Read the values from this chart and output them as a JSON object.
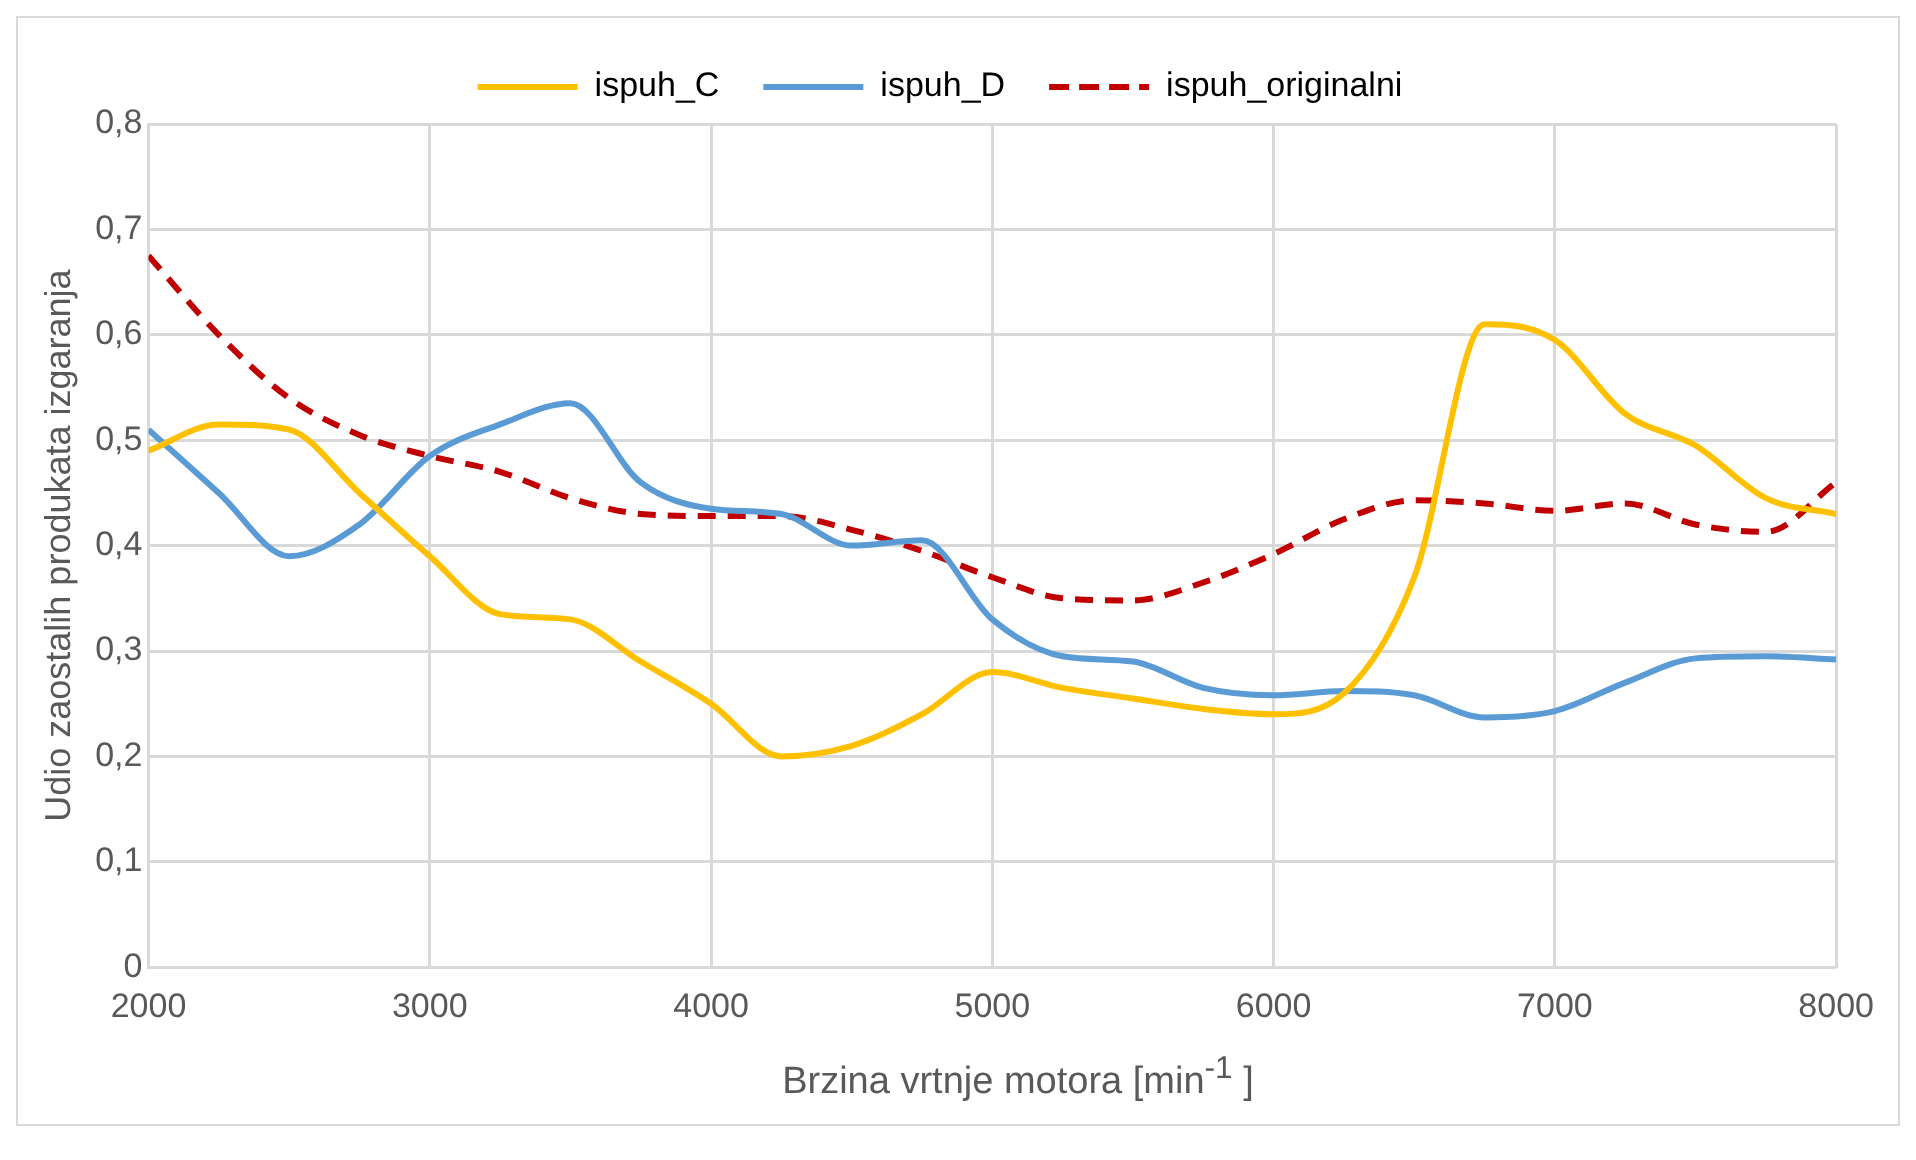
{
  "chart_data": {
    "type": "line",
    "xlabel": "Brzina vrtnje motora [min$^{-1}$ ]",
    "ylabel": "Udio zaostalih produkata izgaranja",
    "x": [
      2000,
      2250,
      2500,
      2750,
      3000,
      3250,
      3500,
      3750,
      4000,
      4250,
      4500,
      4750,
      5000,
      5250,
      5500,
      5750,
      6000,
      6250,
      6500,
      6750,
      7000,
      7250,
      7500,
      7750,
      8000
    ],
    "series": [
      {
        "name": "ispuh_C",
        "color": "#ffc000",
        "line_style": "solid",
        "values": [
          0.49,
          0.515,
          0.51,
          0.45,
          0.39,
          0.335,
          0.33,
          0.29,
          0.25,
          0.2,
          0.21,
          0.24,
          0.28,
          0.265,
          0.255,
          0.245,
          0.24,
          0.26,
          0.37,
          0.61,
          0.595,
          0.525,
          0.495,
          0.445,
          0.43
        ]
      },
      {
        "name": "ispuh_D",
        "color": "#5b9bd5",
        "line_style": "solid",
        "values": [
          0.51,
          0.45,
          0.39,
          0.42,
          0.485,
          0.515,
          0.535,
          0.46,
          0.435,
          0.43,
          0.4,
          0.405,
          0.33,
          0.295,
          0.29,
          0.265,
          0.258,
          0.262,
          0.258,
          0.237,
          0.243,
          0.27,
          0.293,
          0.295,
          0.292
        ]
      },
      {
        "name": "ispuh_originalni",
        "color": "#c00000",
        "line_style": "dashed",
        "values": [
          0.675,
          0.6,
          0.54,
          0.505,
          0.485,
          0.47,
          0.445,
          0.43,
          0.428,
          0.428,
          0.415,
          0.395,
          0.37,
          0.35,
          0.348,
          0.365,
          0.392,
          0.425,
          0.443,
          0.44,
          0.433,
          0.44,
          0.42,
          0.413,
          0.46
        ]
      }
    ],
    "xlim": [
      2000,
      8000
    ],
    "xticks": [
      2000,
      3000,
      4000,
      5000,
      6000,
      7000,
      8000
    ],
    "ylim": [
      0,
      0.8
    ],
    "yticks": [
      0,
      {
        "value": 0.1,
        "label": "0,1"
      },
      {
        "value": 0.2,
        "label": "0,2"
      },
      {
        "value": 0.3,
        "label": "0,3"
      },
      {
        "value": 0.4,
        "label": "0,4"
      },
      {
        "value": 0.5,
        "label": "0,5"
      },
      {
        "value": 0.6,
        "label": "0,6"
      },
      {
        "value": 0.7,
        "label": "0,7"
      },
      {
        "value": 0.8,
        "label": "0,8"
      }
    ],
    "grid": true,
    "legend": "top",
    "marker": "none"
  }
}
